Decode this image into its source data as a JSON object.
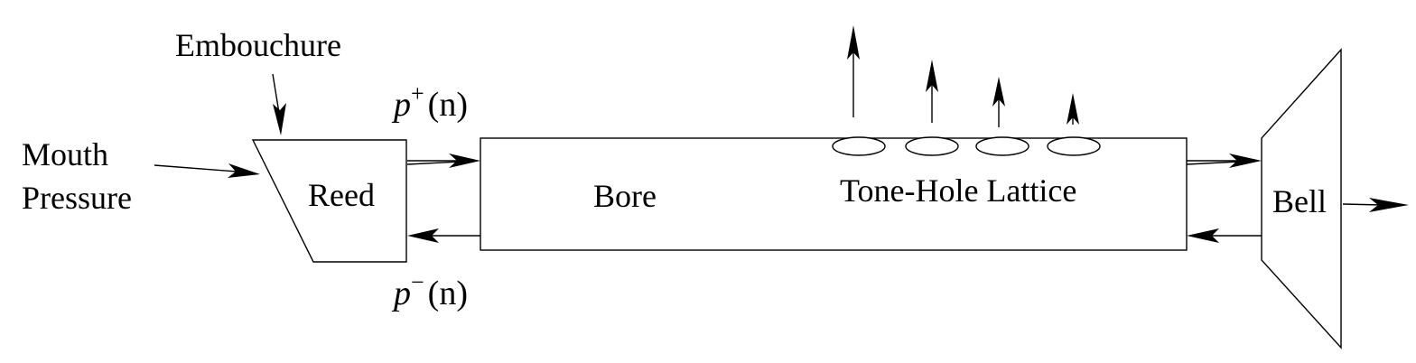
{
  "labels": {
    "embouchure": "Embouchure",
    "mouth_line1": "Mouth",
    "mouth_line2": "Pressure",
    "reed": "Reed",
    "bore": "Bore",
    "tone_hole_lattice": "Tone-Hole Lattice",
    "bell": "Bell"
  },
  "waves": {
    "forward": {
      "symbol": "p",
      "superscript": "+",
      "argument": "(n)"
    },
    "backward": {
      "symbol": "p",
      "superscript": "−",
      "argument": "(n)"
    }
  },
  "tone_holes": {
    "count": 4
  },
  "colors": {
    "stroke": "#000000",
    "background": "#ffffff"
  }
}
